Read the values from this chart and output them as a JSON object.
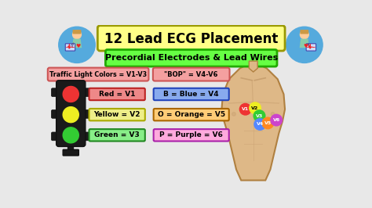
{
  "title": "12 Lead ECG Placement",
  "subtitle": "Precordial Electrodes & Lead Wires",
  "title_bg": "#FFFF88",
  "subtitle_bg": "#66FF44",
  "bg_color": "#E8E8E8",
  "traffic_label": "Traffic Light Colors = V1-V3",
  "bop_label": "\"BOP\" = V4-V6",
  "traffic_label_bg": "#F4A0A0",
  "bop_label_bg": "#F4A0A0",
  "v1_label": "Red = V1",
  "v2_label": "Yellow = V2",
  "v3_label": "Green = V3",
  "v4_label": "B = Blue = V4",
  "v5_label": "O = Orange = V5",
  "v6_label": "P = Purple = V6",
  "v1_color": "#EE3333",
  "v2_color": "#EEEE22",
  "v3_color": "#33CC33",
  "v4_color": "#5588FF",
  "v5_color": "#FF8822",
  "v6_color": "#CC44CC",
  "v1_box_bg": "#EE8888",
  "v2_box_bg": "#EEEE88",
  "v3_box_bg": "#88EE88",
  "v4_box_bg": "#88AAEE",
  "v5_box_bg": "#FFCC77",
  "v6_box_bg": "#FFAADD",
  "circle_bg": "#55AADD",
  "skin_color": "#DEB887",
  "skin_dark": "#C8A070",
  "torso_outline": "#B08040"
}
